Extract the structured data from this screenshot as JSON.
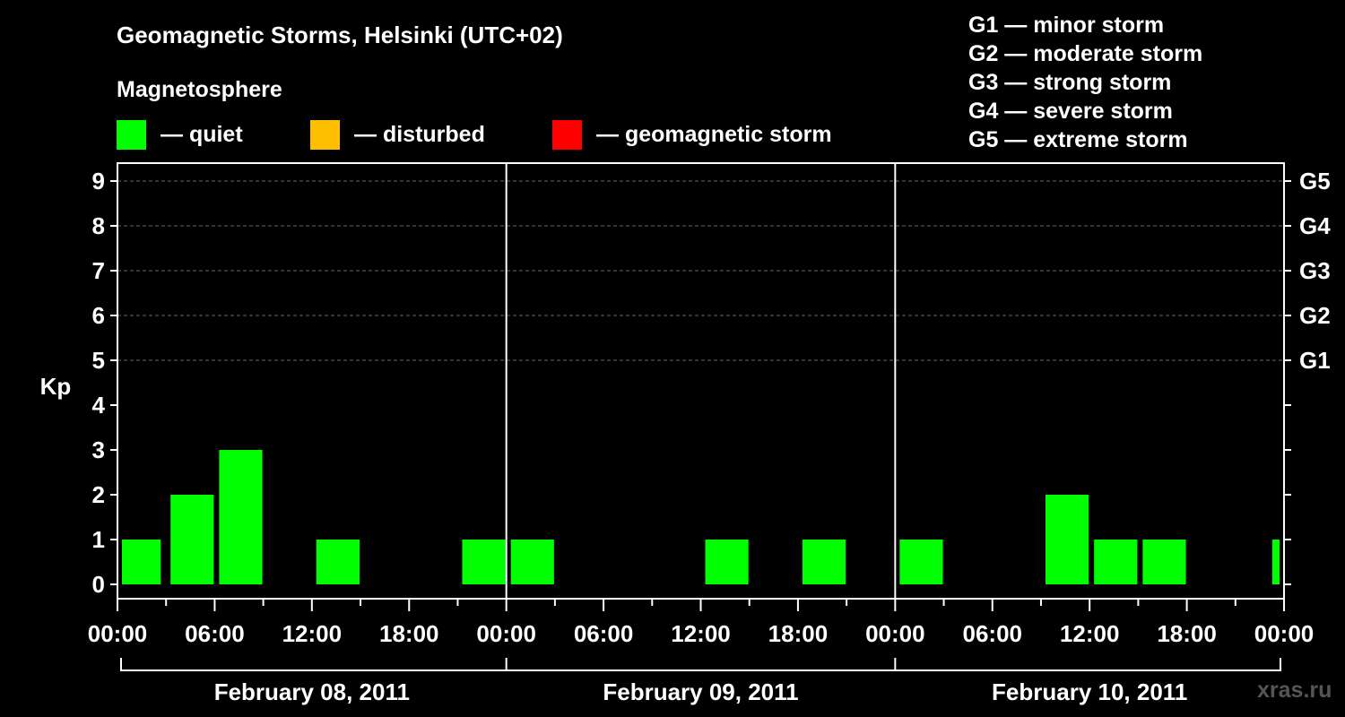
{
  "title": "Geomagnetic Storms, Helsinki (UTC+02)",
  "subtitle": "Magnetosphere",
  "legend": [
    {
      "label": "— quiet",
      "color": "#00ff00"
    },
    {
      "label": "— disturbed",
      "color": "#ffbf00"
    },
    {
      "label": "— geomagnetic storm",
      "color": "#ff0000"
    }
  ],
  "storm_levels": [
    "G1 — minor storm",
    "G2 — moderate storm",
    "G3 — strong storm",
    "G4 — severe storm",
    "G5 — extreme storm"
  ],
  "watermark": "xras.ru",
  "chart_data": {
    "type": "bar",
    "ylabel": "Kp",
    "ylim": [
      0,
      9
    ],
    "yticks": [
      0,
      1,
      2,
      3,
      4,
      5,
      6,
      7,
      8,
      9
    ],
    "right_labels": [
      {
        "kp": 5,
        "label": "G1"
      },
      {
        "kp": 6,
        "label": "G2"
      },
      {
        "kp": 7,
        "label": "G3"
      },
      {
        "kp": 8,
        "label": "G4"
      },
      {
        "kp": 9,
        "label": "G5"
      }
    ],
    "x_tick_labels": [
      "00:00",
      "06:00",
      "12:00",
      "18:00",
      "00:00",
      "06:00",
      "12:00",
      "18:00",
      "00:00",
      "06:00",
      "12:00",
      "18:00",
      "00:00"
    ],
    "days": [
      "February 08, 2011",
      "February 09, 2011",
      "February 10, 2011"
    ],
    "grid": true,
    "bars": [
      {
        "start": "2011-02-08 00:00",
        "kp": 1
      },
      {
        "start": "2011-02-08 03:00",
        "kp": 2
      },
      {
        "start": "2011-02-08 06:00",
        "kp": 3
      },
      {
        "start": "2011-02-08 09:00",
        "kp": 0
      },
      {
        "start": "2011-02-08 12:00",
        "kp": 1
      },
      {
        "start": "2011-02-08 15:00",
        "kp": 0
      },
      {
        "start": "2011-02-08 18:00",
        "kp": 0
      },
      {
        "start": "2011-02-08 21:00",
        "kp": 1
      },
      {
        "start": "2011-02-09 00:00",
        "kp": 1
      },
      {
        "start": "2011-02-09 03:00",
        "kp": 0
      },
      {
        "start": "2011-02-09 06:00",
        "kp": 0
      },
      {
        "start": "2011-02-09 09:00",
        "kp": 0
      },
      {
        "start": "2011-02-09 12:00",
        "kp": 1
      },
      {
        "start": "2011-02-09 15:00",
        "kp": 0
      },
      {
        "start": "2011-02-09 18:00",
        "kp": 1
      },
      {
        "start": "2011-02-09 21:00",
        "kp": 0
      },
      {
        "start": "2011-02-10 00:00",
        "kp": 1
      },
      {
        "start": "2011-02-10 03:00",
        "kp": 0
      },
      {
        "start": "2011-02-10 06:00",
        "kp": 0
      },
      {
        "start": "2011-02-10 09:00",
        "kp": 2
      },
      {
        "start": "2011-02-10 12:00",
        "kp": 1
      },
      {
        "start": "2011-02-10 15:00",
        "kp": 1
      },
      {
        "start": "2011-02-10 18:00",
        "kp": 0
      },
      {
        "start": "2011-02-10 21:00",
        "kp": 0
      },
      {
        "start": "2011-02-10 23:00",
        "kp": 1
      }
    ]
  }
}
